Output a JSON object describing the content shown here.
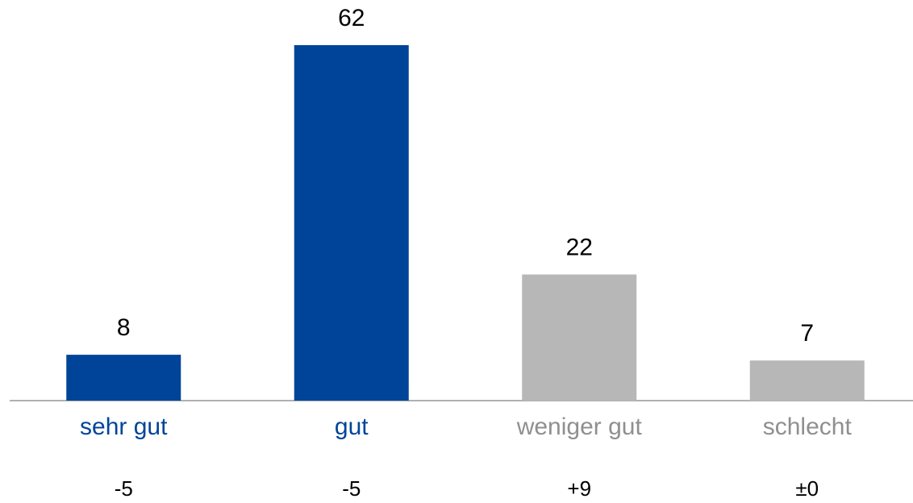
{
  "chart_data": {
    "type": "bar",
    "categories": [
      "sehr gut",
      "gut",
      "weniger gut",
      "schlecht"
    ],
    "values": [
      8,
      62,
      22,
      7
    ],
    "colors": [
      "#00449a",
      "#00449a",
      "#b7b7b7",
      "#b7b7b7"
    ],
    "label_colors": [
      "#00449a",
      "#00449a",
      "#8f8f8f",
      "#8f8f8f"
    ],
    "change_labels": [
      "-5",
      "-5",
      "+9",
      "±0"
    ]
  }
}
